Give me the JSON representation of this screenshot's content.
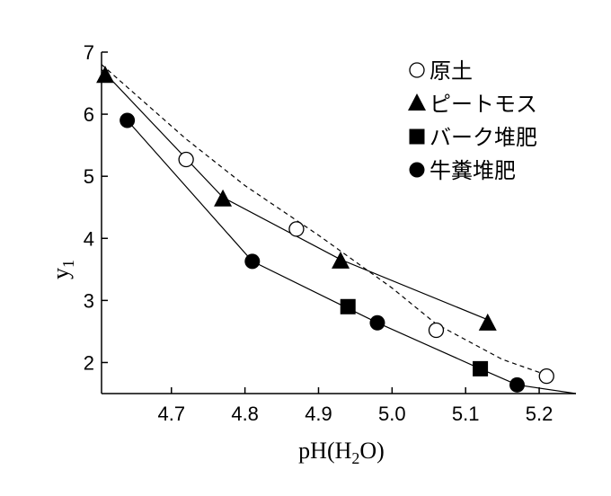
{
  "chart_data": {
    "type": "scatter",
    "xlabel": "pH(H",
    "xlabel_sub": "2",
    "xlabel_tail": "O)",
    "ylabel": "y",
    "ylabel_sub": "1",
    "xlim": [
      4.605,
      5.25
    ],
    "ylim": [
      1.5,
      7.0
    ],
    "x_ticks": [
      4.7,
      4.8,
      4.9,
      5.0,
      5.1,
      5.2
    ],
    "x_tick_labels": [
      "4.7",
      "4.8",
      "4.9",
      "5.0",
      "5.1",
      "5.2"
    ],
    "y_ticks": [
      2,
      3,
      4,
      5,
      6,
      7
    ],
    "y_tick_labels": [
      "2",
      "3",
      "4",
      "5",
      "6",
      "7"
    ],
    "legend_position": "top-right",
    "series": [
      {
        "name": "原土",
        "marker": "circle-open",
        "points": [
          [
            4.72,
            5.27
          ],
          [
            4.87,
            4.15
          ],
          [
            5.06,
            2.52
          ],
          [
            5.21,
            1.78
          ]
        ],
        "fit": {
          "style": "dashed",
          "points": [
            [
              4.605,
              6.8
            ],
            [
              4.72,
              5.6
            ],
            [
              4.8,
              4.85
            ],
            [
              4.9,
              4.05
            ],
            [
              5.0,
              3.2
            ],
            [
              5.06,
              2.62
            ],
            [
              5.15,
              2.05
            ],
            [
              5.21,
              1.8
            ]
          ]
        }
      },
      {
        "name": "ピートモス",
        "marker": "triangle",
        "points": [
          [
            4.61,
            6.62
          ],
          [
            4.77,
            4.63
          ],
          [
            4.93,
            3.63
          ],
          [
            5.13,
            2.63
          ]
        ],
        "fit": {
          "style": "solid",
          "points": [
            [
              4.605,
              6.72
            ],
            [
              4.77,
              4.66
            ],
            [
              4.93,
              3.66
            ],
            [
              5.13,
              2.69
            ]
          ]
        }
      },
      {
        "name": "バーク堆肥",
        "marker": "square",
        "points": [
          [
            4.94,
            2.9
          ],
          [
            5.12,
            1.9
          ]
        ],
        "fit": null
      },
      {
        "name": "牛糞堆肥",
        "marker": "circle-filled",
        "points": [
          [
            4.64,
            5.9
          ],
          [
            4.81,
            3.63
          ],
          [
            4.98,
            2.64
          ],
          [
            5.17,
            1.64
          ]
        ],
        "fit": {
          "style": "solid",
          "points": [
            [
              4.64,
              5.9
            ],
            [
              4.81,
              3.63
            ],
            [
              4.98,
              2.64
            ],
            [
              5.12,
              1.9
            ],
            [
              5.17,
              1.64
            ],
            [
              5.25,
              1.5
            ]
          ]
        }
      }
    ]
  }
}
